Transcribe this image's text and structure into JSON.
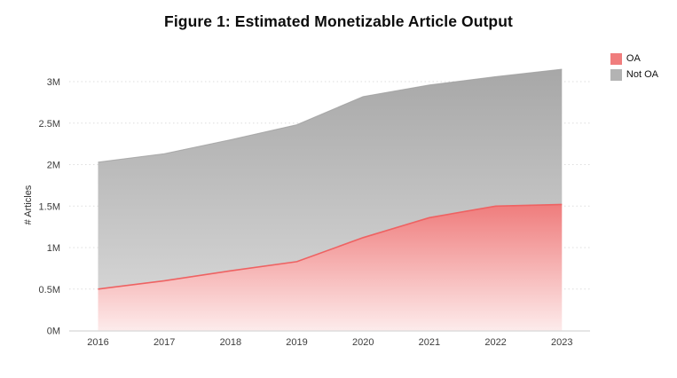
{
  "chart_data": {
    "type": "area",
    "stacked": true,
    "title": "Figure 1: Estimated Monetizable Article Output",
    "ylabel": "# Articles",
    "xlabel": "",
    "categories": [
      "2016",
      "2017",
      "2018",
      "2019",
      "2020",
      "2021",
      "2022",
      "2023"
    ],
    "series": [
      {
        "name": "OA",
        "color": "#f07d7d",
        "values": [
          0.5,
          0.6,
          0.72,
          0.83,
          1.12,
          1.36,
          1.5,
          1.52
        ]
      },
      {
        "name": "Not OA",
        "color": "#b3b3b3",
        "values": [
          1.53,
          1.53,
          1.58,
          1.65,
          1.7,
          1.6,
          1.56,
          1.63
        ]
      }
    ],
    "stacked_totals": [
      2.03,
      2.13,
      2.3,
      2.48,
      2.82,
      2.96,
      3.06,
      3.15
    ],
    "units": "M articles",
    "y_tick_values": [
      0,
      0.5,
      1,
      1.5,
      2,
      2.5,
      3
    ],
    "y_tick_labels": [
      "0M",
      "0.5M",
      "1M",
      "1.5M",
      "2M",
      "2.5M",
      "3M"
    ],
    "ylim": [
      0,
      3.25
    ],
    "grid": "horizontal-dotted",
    "legend_position": "top-right"
  },
  "colors": {
    "background": "#ffffff",
    "oa_fill_top": "#ef7c7c",
    "oa_fill_bottom": "#fdecec",
    "oa_edge": "#ee6262",
    "not_oa_fill_top": "#a7a7a7",
    "not_oa_fill_bottom": "#d6d6d6",
    "not_oa_edge": "#9f9f9f",
    "gridline": "#dedede",
    "axis_line": "#d8d8d8",
    "tick_text": "#3d3d3d",
    "title_text": "#0c0c0c"
  }
}
